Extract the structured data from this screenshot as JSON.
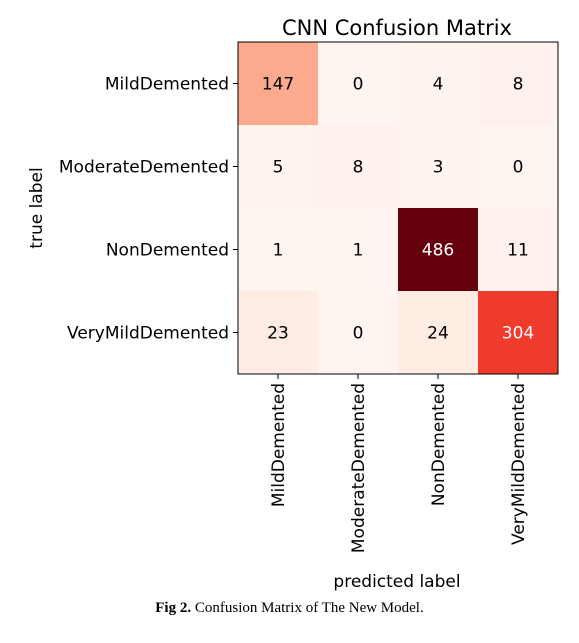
{
  "chart_data": {
    "type": "heatmap",
    "title": "CNN Confusion Matrix",
    "xlabel": "predicted label",
    "ylabel": "true label",
    "x_categories": [
      "MildDemented",
      "ModerateDemented",
      "NonDemented",
      "VeryMildDemented"
    ],
    "y_categories": [
      "MildDemented",
      "ModerateDemented",
      "NonDemented",
      "VeryMildDemented"
    ],
    "values": [
      [
        147,
        0,
        4,
        8
      ],
      [
        5,
        8,
        3,
        0
      ],
      [
        1,
        1,
        486,
        11
      ],
      [
        23,
        0,
        24,
        304
      ]
    ],
    "colormap": "Reds",
    "vmin": 0,
    "vmax": 486,
    "grid": false
  },
  "caption": {
    "label": "Fig 2.",
    "text": " Confusion Matrix of The New Model."
  }
}
